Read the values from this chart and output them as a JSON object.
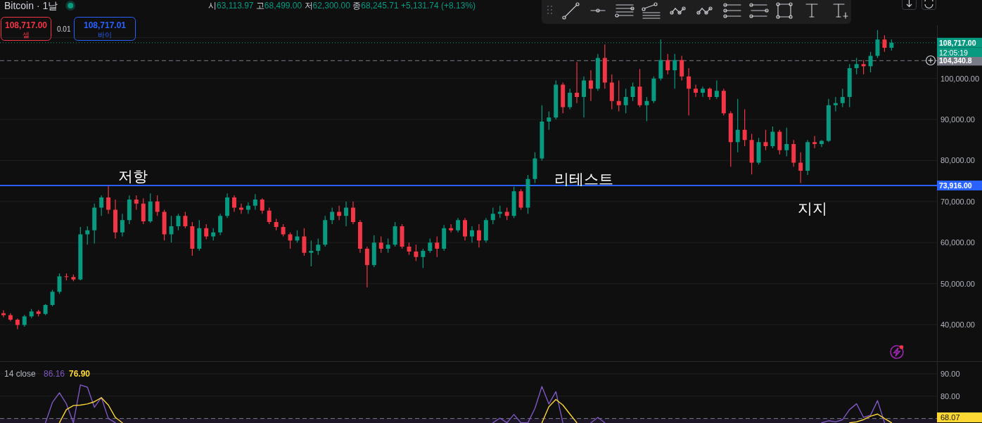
{
  "chart_data": [
    {
      "type": "candlestick",
      "title": "Bitcoin · 1날",
      "categories": [
        null,
        null,
        null,
        null,
        null,
        null,
        null,
        null,
        null,
        null,
        null,
        null,
        null,
        null,
        null,
        null,
        null,
        null,
        null,
        null,
        null,
        null,
        null,
        null,
        null,
        null,
        null,
        null,
        null,
        null,
        null,
        null,
        null,
        null,
        null,
        null,
        null,
        null,
        null,
        null,
        null,
        null,
        null,
        null,
        null,
        null,
        null,
        null,
        null,
        null,
        null,
        null,
        null,
        null,
        null,
        null,
        null,
        null,
        null,
        null,
        null,
        null,
        null,
        null,
        null,
        null,
        null,
        null,
        null,
        null,
        null,
        null,
        null,
        null,
        null,
        null,
        null,
        null,
        null,
        null,
        null,
        null,
        null,
        null,
        null,
        null,
        null,
        null,
        null,
        null,
        null,
        null,
        null,
        null,
        null,
        null,
        null,
        null,
        null,
        null,
        null,
        null,
        null,
        null,
        null,
        null,
        null,
        null,
        null,
        null,
        null,
        null,
        null,
        null,
        null,
        null,
        null,
        null,
        null,
        null,
        null,
        null,
        null,
        null,
        null,
        null,
        null,
        null,
        null,
        null,
        null,
        null,
        null,
        null
      ],
      "ohlc": [
        [
          42800,
          43500,
          41800,
          42300
        ],
        [
          42300,
          42800,
          40800,
          41200
        ],
        [
          41200,
          41500,
          38900,
          39900
        ],
        [
          39900,
          42400,
          39500,
          42000
        ],
        [
          42000,
          43800,
          41600,
          43200
        ],
        [
          43200,
          43600,
          42000,
          42600
        ],
        [
          42600,
          45000,
          42300,
          44800
        ],
        [
          44800,
          48500,
          44500,
          48000
        ],
        [
          48000,
          52500,
          47500,
          51800
        ],
        [
          51800,
          52500,
          50800,
          51600
        ],
        [
          51600,
          52200,
          50600,
          51000
        ],
        [
          51000,
          63800,
          50800,
          62000
        ],
        [
          62000,
          64000,
          59500,
          63000
        ],
        [
          63000,
          69500,
          59800,
          68500
        ],
        [
          68500,
          71500,
          66500,
          71000
        ],
        [
          71000,
          73800,
          67000,
          68000
        ],
        [
          68000,
          70500,
          61000,
          62500
        ],
        [
          62500,
          67000,
          61500,
          65500
        ],
        [
          65500,
          71500,
          64500,
          70500
        ],
        [
          70500,
          71500,
          68000,
          69500
        ],
        [
          69500,
          70800,
          64500,
          65200
        ],
        [
          65200,
          72000,
          64800,
          70000
        ],
        [
          70000,
          71500,
          66500,
          67500
        ],
        [
          67500,
          68000,
          60500,
          62000
        ],
        [
          62000,
          66500,
          60000,
          64000
        ],
        [
          64000,
          67000,
          63000,
          66500
        ],
        [
          66500,
          67500,
          63500,
          64000
        ],
        [
          64000,
          65000,
          56800,
          58500
        ],
        [
          58500,
          65500,
          58000,
          63500
        ],
        [
          63500,
          64500,
          60800,
          61500
        ],
        [
          61500,
          63500,
          60500,
          62500
        ],
        [
          62500,
          67000,
          61800,
          66500
        ],
        [
          66500,
          72000,
          66000,
          71000
        ],
        [
          71000,
          71500,
          67500,
          68500
        ],
        [
          68500,
          69500,
          67000,
          68000
        ],
        [
          68000,
          69800,
          67000,
          69000
        ],
        [
          69000,
          71800,
          68000,
          70500
        ],
        [
          70500,
          70800,
          67000,
          67800
        ],
        [
          67800,
          68500,
          64500,
          65000
        ],
        [
          65000,
          65800,
          63000,
          63800
        ],
        [
          63800,
          64500,
          61500,
          62000
        ],
        [
          62000,
          62500,
          58500,
          60500
        ],
        [
          60500,
          63000,
          60000,
          61500
        ],
        [
          61500,
          63500,
          56800,
          57500
        ],
        [
          57500,
          60500,
          54200,
          58000
        ],
        [
          58000,
          61000,
          57000,
          59500
        ],
        [
          59500,
          66500,
          59000,
          65500
        ],
        [
          65500,
          68500,
          64500,
          67500
        ],
        [
          67500,
          69000,
          65500,
          66500
        ],
        [
          66500,
          70000,
          64000,
          68500
        ],
        [
          68500,
          70000,
          64500,
          65000
        ],
        [
          65000,
          65500,
          57500,
          58500
        ],
        [
          58500,
          59000,
          49100,
          54500
        ],
        [
          54500,
          61800,
          54000,
          60000
        ],
        [
          60000,
          61500,
          57500,
          58500
        ],
        [
          58500,
          61000,
          57500,
          59500
        ],
        [
          59500,
          65000,
          59000,
          64000
        ],
        [
          64000,
          64500,
          58500,
          59000
        ],
        [
          59000,
          60000,
          57000,
          57800
        ],
        [
          57800,
          59500,
          55500,
          56500
        ],
        [
          56500,
          58500,
          53800,
          58000
        ],
        [
          58000,
          61000,
          57500,
          60000
        ],
        [
          60000,
          61500,
          56500,
          58500
        ],
        [
          58500,
          64300,
          58000,
          63500
        ],
        [
          63500,
          64500,
          62500,
          63000
        ],
        [
          63000,
          66000,
          62500,
          65500
        ],
        [
          65500,
          66000,
          60500,
          61500
        ],
        [
          61500,
          64000,
          60000,
          63000
        ],
        [
          63000,
          64500,
          58800,
          60500
        ],
        [
          60500,
          66000,
          60000,
          65500
        ],
        [
          65500,
          68500,
          64500,
          67000
        ],
        [
          67000,
          69000,
          66000,
          67500
        ],
        [
          67500,
          68500,
          65500,
          66500
        ],
        [
          66500,
          73600,
          66000,
          72500
        ],
        [
          72500,
          73000,
          68000,
          68500
        ],
        [
          68500,
          76500,
          67000,
          75500
        ],
        [
          75500,
          82000,
          74500,
          80500
        ],
        [
          80500,
          93500,
          80000,
          89500
        ],
        [
          89500,
          92000,
          87500,
          90500
        ],
        [
          90500,
          99500,
          90000,
          98500
        ],
        [
          98500,
          99000,
          91500,
          93000
        ],
        [
          93000,
          97500,
          92500,
          96500
        ],
        [
          96500,
          104000,
          94000,
          95500
        ],
        [
          95500,
          100500,
          90500,
          99500
        ],
        [
          99500,
          102000,
          94500,
          97500
        ],
        [
          97500,
          106000,
          97000,
          105000
        ],
        [
          105000,
          108300,
          97500,
          99000
        ],
        [
          99000,
          101000,
          92500,
          94500
        ],
        [
          94500,
          99500,
          92000,
          93500
        ],
        [
          93500,
          97500,
          91500,
          95500
        ],
        [
          95500,
          99000,
          94500,
          98000
        ],
        [
          98000,
          102300,
          93000,
          93500
        ],
        [
          93500,
          95500,
          89600,
          94500
        ],
        [
          94500,
          100500,
          94000,
          100000
        ],
        [
          100000,
          109500,
          99500,
          104500
        ],
        [
          104500,
          106000,
          101000,
          102000
        ],
        [
          102000,
          106000,
          97500,
          104500
        ],
        [
          104500,
          105500,
          99500,
          100500
        ],
        [
          100500,
          102500,
          91000,
          97500
        ],
        [
          97500,
          98500,
          95500,
          96500
        ],
        [
          96500,
          98000,
          95500,
          97500
        ],
        [
          97500,
          97800,
          94800,
          95500
        ],
        [
          95500,
          99500,
          95000,
          97000
        ],
        [
          97000,
          97500,
          91000,
          91500
        ],
        [
          91500,
          92000,
          78500,
          84500
        ],
        [
          84500,
          95000,
          82000,
          87500
        ],
        [
          87500,
          92500,
          83500,
          85000
        ],
        [
          85000,
          86500,
          76600,
          79500
        ],
        [
          79500,
          85500,
          79000,
          84500
        ],
        [
          84500,
          87500,
          82500,
          83500
        ],
        [
          83500,
          88300,
          83000,
          87000
        ],
        [
          87000,
          87500,
          81500,
          82500
        ],
        [
          82500,
          88000,
          81000,
          84000
        ],
        [
          84000,
          85000,
          78500,
          79500
        ],
        [
          79500,
          82000,
          74500,
          77500
        ],
        [
          77500,
          85000,
          76500,
          84500
        ],
        [
          84500,
          86000,
          83000,
          84000
        ],
        [
          84000,
          85000,
          83300,
          84800
        ],
        [
          84800,
          95000,
          84500,
          93500
        ],
        [
          93500,
          95500,
          92000,
          94000
        ],
        [
          94000,
          97500,
          93000,
          95500
        ],
        [
          95500,
          103500,
          93000,
          102500
        ],
        [
          102500,
          105000,
          101000,
          103500
        ],
        [
          103500,
          104500,
          101000,
          103000
        ],
        [
          103000,
          106500,
          101500,
          105500
        ],
        [
          105500,
          111800,
          105000,
          109500
        ],
        [
          109500,
          110500,
          106500,
          107500
        ],
        [
          107500,
          109500,
          106800,
          108717
        ],
        null,
        null,
        null,
        null,
        null,
        null
      ],
      "ylim": [
        31100,
        112960
      ],
      "yticks": [
        {
          "value": 40000,
          "label": "40,000.00"
        },
        {
          "value": 50000,
          "label": "50,000.00"
        },
        {
          "value": 60000,
          "label": "60,000.00"
        },
        {
          "value": 70000,
          "label": "70,000.00"
        },
        {
          "value": 80000,
          "label": "80,000.00"
        },
        {
          "value": 90000,
          "label": "90,000.00"
        },
        {
          "value": 100000,
          "label": "100,000.00"
        },
        {
          "value": 110000,
          "label": null
        }
      ],
      "grid": "y",
      "tick_labels": "y",
      "ref_lines": [
        {
          "axis": "y",
          "value": 73916,
          "label": "73,916.00",
          "color": "#2962ff",
          "line_style": "solid"
        },
        {
          "axis": "y",
          "value": 104340.8,
          "label": "104,340.8",
          "color": "#787b86",
          "line_style": "dashed"
        },
        {
          "axis": "y",
          "value": 108717,
          "label": "108,717.00",
          "color": "#089981",
          "line_style": "dotted"
        }
      ],
      "annotations": [
        "시63,113.97 고68,499.00 저62,300.00 종68,245.71 +5,131.74 (+8.13%)",
        "108,717.00",
        "셀",
        "0.01",
        "108,717.01",
        "바이",
        "12:05:19",
        "저항",
        "리테스트",
        "지지"
      ]
    },
    {
      "type": "line",
      "categories": [
        null,
        null,
        null,
        null,
        null,
        null,
        null,
        null,
        null,
        null,
        null,
        null,
        null,
        null,
        null,
        null,
        null,
        null,
        null,
        null,
        null,
        null,
        null,
        null,
        null,
        null,
        null,
        null,
        null,
        null,
        null,
        null,
        null,
        null,
        null,
        null,
        null,
        null,
        null,
        null,
        null,
        null,
        null,
        null,
        null,
        null,
        null,
        null,
        null,
        null,
        null,
        null,
        null,
        null,
        null,
        null,
        null,
        null,
        null,
        null,
        null,
        null,
        null,
        null,
        null,
        null,
        null,
        null,
        null,
        null,
        null,
        null,
        null,
        null,
        null,
        null,
        null,
        null,
        null,
        null,
        null,
        null,
        null,
        null,
        null,
        null,
        null,
        null,
        null,
        null,
        null,
        null,
        null,
        null,
        null,
        null,
        null,
        null,
        null,
        null,
        null,
        null,
        null,
        null,
        null,
        null,
        null,
        null,
        null,
        null,
        null,
        null,
        null,
        null,
        null,
        null,
        null,
        null,
        null,
        null,
        null,
        null,
        null,
        null,
        null,
        null,
        null,
        null,
        null,
        null,
        null,
        null,
        null,
        null
      ],
      "series": [
        {
          "color": "#7e57c2",
          "values": [
            null,
            null,
            null,
            null,
            null,
            null,
            68.1,
            77.2,
            81.5,
            76.5,
            68.1,
            85.0,
            84.0,
            75.0,
            79.4,
            70.0,
            68.1,
            null,
            null,
            null,
            null,
            null,
            null,
            null,
            null,
            null,
            null,
            null,
            null,
            null,
            null,
            null,
            null,
            null,
            null,
            null,
            null,
            null,
            null,
            null,
            null,
            null,
            null,
            null,
            null,
            null,
            null,
            null,
            null,
            null,
            null,
            null,
            null,
            null,
            null,
            null,
            null,
            null,
            null,
            null,
            null,
            null,
            null,
            null,
            null,
            null,
            null,
            null,
            null,
            null,
            68.1,
            70.2,
            68.1,
            71.8,
            68.1,
            68.1,
            74.5,
            84.3,
            76.5,
            82.0,
            68.1,
            null,
            null,
            null,
            68.1,
            70.5,
            68.1,
            null,
            null,
            null,
            null,
            null,
            null,
            null,
            null,
            null,
            null,
            null,
            null,
            null,
            null,
            null,
            null,
            null,
            null,
            null,
            null,
            null,
            null,
            null,
            null,
            null,
            null,
            null,
            null,
            null,
            null,
            68.1,
            69.0,
            68.5,
            69.5,
            74.0,
            76.6,
            70.5,
            71.5,
            78.0,
            68.1,
            null,
            null,
            null,
            null,
            null,
            null,
            null
          ]
        },
        {
          "color": "#fdd835",
          "values": [
            null,
            null,
            null,
            null,
            null,
            null,
            null,
            null,
            68.1,
            74.0,
            75.8,
            76.0,
            76.5,
            77.5,
            79.3,
            76.0,
            70.5,
            68.1,
            null,
            null,
            null,
            null,
            null,
            null,
            null,
            null,
            null,
            null,
            null,
            null,
            null,
            null,
            null,
            null,
            null,
            null,
            null,
            null,
            null,
            null,
            null,
            null,
            null,
            null,
            null,
            null,
            null,
            null,
            null,
            null,
            null,
            null,
            null,
            null,
            null,
            null,
            null,
            null,
            null,
            null,
            null,
            null,
            null,
            null,
            null,
            null,
            null,
            null,
            null,
            null,
            null,
            null,
            null,
            null,
            null,
            null,
            null,
            68.1,
            75.3,
            78.5,
            76.0,
            72.0,
            68.1,
            null,
            null,
            null,
            null,
            null,
            null,
            null,
            null,
            null,
            null,
            null,
            null,
            null,
            null,
            null,
            null,
            null,
            null,
            null,
            null,
            null,
            null,
            null,
            null,
            null,
            null,
            null,
            null,
            null,
            null,
            null,
            null,
            null,
            null,
            null,
            null,
            null,
            null,
            68.1,
            68.5,
            69.5,
            71.0,
            72.0,
            70.0,
            68.1,
            null,
            null,
            null,
            null,
            null,
            null
          ]
        }
      ],
      "ylim": [
        68,
        95.3
      ],
      "yticks": [
        {
          "value": 90,
          "label": "90.00"
        },
        {
          "value": 80,
          "label": "80.00"
        }
      ],
      "grid": "y",
      "tick_labels": "y",
      "line_style": "solid",
      "ref_lines": [
        {
          "axis": "y",
          "value": 70,
          "color": "#787b86",
          "line_style": "dashed"
        }
      ],
      "bands": [
        {
          "axis": "y",
          "from": 68,
          "to": 70,
          "color": "#1b1526"
        }
      ],
      "annotations": [
        "14 close",
        "86.16",
        "76.90",
        "68.07"
      ]
    }
  ]
}
